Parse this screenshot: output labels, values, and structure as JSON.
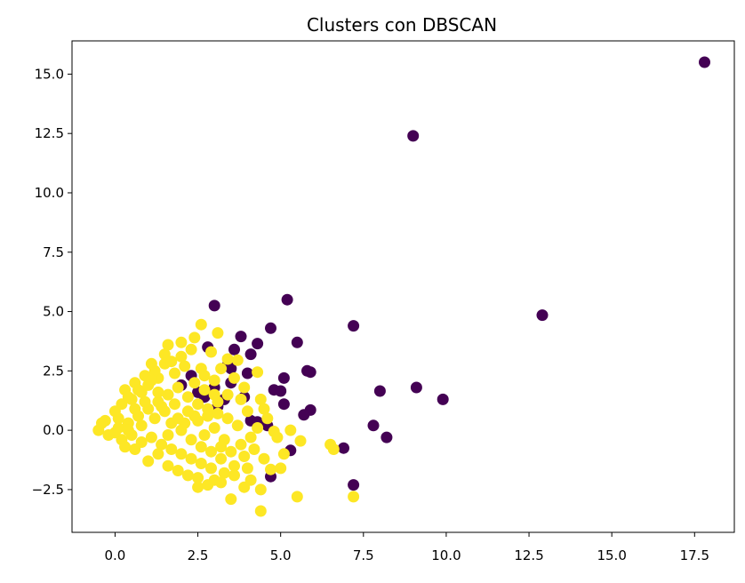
{
  "chart_data": {
    "type": "scatter",
    "title": "Clusters con DBSCAN",
    "xlabel": "",
    "ylabel": "",
    "xlim": [
      -1.3,
      18.7
    ],
    "ylim": [
      -4.3,
      16.4
    ],
    "grid": false,
    "legend": "none",
    "xticks": [
      0.0,
      2.5,
      5.0,
      7.5,
      10.0,
      12.5,
      15.0,
      17.5
    ],
    "xtick_labels": [
      "0.0",
      "2.5",
      "5.0",
      "7.5",
      "10.0",
      "12.5",
      "15.0",
      "17.5"
    ],
    "yticks": [
      -2.5,
      0.0,
      2.5,
      5.0,
      7.5,
      10.0,
      12.5,
      15.0
    ],
    "ytick_labels": [
      "−2.5",
      "0.0",
      "2.5",
      "5.0",
      "7.5",
      "10.0",
      "12.5",
      "15.0"
    ],
    "colors": {
      "noise": "#440154",
      "cluster": "#fde725"
    },
    "series": [
      {
        "color": "noise",
        "points": [
          [
            17.8,
            15.5
          ],
          [
            9.0,
            12.4
          ],
          [
            12.9,
            4.85
          ],
          [
            5.2,
            5.5
          ],
          [
            3.0,
            5.25
          ],
          [
            7.2,
            4.4
          ],
          [
            4.7,
            4.3
          ],
          [
            3.8,
            3.95
          ],
          [
            4.3,
            3.65
          ],
          [
            5.5,
            3.7
          ],
          [
            2.8,
            3.5
          ],
          [
            3.6,
            3.4
          ],
          [
            4.1,
            3.2
          ],
          [
            5.8,
            2.5
          ],
          [
            5.9,
            2.45
          ],
          [
            3.5,
            2.6
          ],
          [
            3.4,
            2.75
          ],
          [
            4.0,
            2.4
          ],
          [
            2.3,
            2.3
          ],
          [
            5.1,
            2.2
          ],
          [
            4.8,
            1.7
          ],
          [
            5.0,
            1.65
          ],
          [
            9.1,
            1.8
          ],
          [
            8.0,
            1.65
          ],
          [
            9.9,
            1.3
          ],
          [
            5.1,
            1.1
          ],
          [
            3.3,
            1.3
          ],
          [
            3.9,
            1.4
          ],
          [
            3.1,
            1.0
          ],
          [
            5.9,
            0.85
          ],
          [
            5.7,
            0.65
          ],
          [
            4.1,
            0.4
          ],
          [
            4.3,
            0.35
          ],
          [
            4.6,
            0.2
          ],
          [
            7.8,
            0.2
          ],
          [
            8.2,
            -0.3
          ],
          [
            6.9,
            -0.75
          ],
          [
            5.3,
            -0.85
          ],
          [
            4.7,
            -1.95
          ],
          [
            7.2,
            -2.3
          ],
          [
            2.7,
            1.4
          ],
          [
            3.0,
            1.8
          ],
          [
            2.5,
            1.6
          ],
          [
            3.5,
            2.0
          ],
          [
            2.0,
            1.9
          ]
        ]
      },
      {
        "color": "cluster",
        "points": [
          [
            2.6,
            4.45
          ],
          [
            3.1,
            4.1
          ],
          [
            2.4,
            3.9
          ],
          [
            2.0,
            3.7
          ],
          [
            1.6,
            3.6
          ],
          [
            2.9,
            3.3
          ],
          [
            1.5,
            3.2
          ],
          [
            3.4,
            3.0
          ],
          [
            3.7,
            2.95
          ],
          [
            1.1,
            2.8
          ],
          [
            4.3,
            2.45
          ],
          [
            3.9,
            1.8
          ],
          [
            4.4,
            1.3
          ],
          [
            4.5,
            0.9
          ],
          [
            4.8,
            -0.05
          ],
          [
            5.6,
            -0.45
          ],
          [
            6.5,
            -0.6
          ],
          [
            6.6,
            -0.8
          ],
          [
            5.1,
            -1.0
          ],
          [
            4.7,
            -1.65
          ],
          [
            4.1,
            -2.1
          ],
          [
            4.4,
            -2.5
          ],
          [
            3.0,
            -2.1
          ],
          [
            2.5,
            -2.4
          ],
          [
            3.5,
            -2.9
          ],
          [
            4.4,
            -3.4
          ],
          [
            5.5,
            -2.8
          ],
          [
            7.2,
            -2.8
          ],
          [
            -0.5,
            0.0
          ],
          [
            -0.3,
            0.4
          ],
          [
            0.0,
            0.8
          ],
          [
            0.2,
            1.1
          ],
          [
            0.5,
            1.3
          ],
          [
            0.8,
            1.6
          ],
          [
            1.0,
            1.9
          ],
          [
            1.3,
            2.2
          ],
          [
            0.6,
            2.0
          ],
          [
            0.3,
            1.7
          ],
          [
            1.8,
            2.4
          ],
          [
            2.1,
            2.7
          ],
          [
            2.4,
            2.0
          ],
          [
            2.7,
            2.3
          ],
          [
            3.0,
            2.1
          ],
          [
            0.1,
            0.1
          ],
          [
            0.4,
            0.3
          ],
          [
            0.7,
            0.6
          ],
          [
            1.0,
            0.9
          ],
          [
            1.3,
            1.2
          ],
          [
            1.6,
            1.5
          ],
          [
            1.9,
            1.8
          ],
          [
            2.2,
            1.4
          ],
          [
            2.5,
            1.1
          ],
          [
            2.8,
            0.9
          ],
          [
            3.1,
            0.7
          ],
          [
            3.4,
            0.5
          ],
          [
            0.2,
            -0.4
          ],
          [
            0.5,
            -0.2
          ],
          [
            0.8,
            -0.5
          ],
          [
            1.1,
            -0.3
          ],
          [
            1.4,
            -0.6
          ],
          [
            1.7,
            -0.8
          ],
          [
            2.0,
            -1.0
          ],
          [
            2.3,
            -1.2
          ],
          [
            2.6,
            -1.4
          ],
          [
            2.9,
            -1.6
          ],
          [
            3.2,
            -1.2
          ],
          [
            3.5,
            -0.9
          ],
          [
            3.8,
            -0.6
          ],
          [
            4.1,
            -0.3
          ],
          [
            3.7,
            0.2
          ],
          [
            0.6,
            0.9
          ],
          [
            0.9,
            1.2
          ],
          [
            1.2,
            0.5
          ],
          [
            1.5,
            0.8
          ],
          [
            1.8,
            1.1
          ],
          [
            2.1,
            0.3
          ],
          [
            2.4,
            0.6
          ],
          [
            2.7,
            -0.2
          ],
          [
            3.0,
            0.1
          ],
          [
            3.3,
            -0.4
          ],
          [
            1.0,
            -1.3
          ],
          [
            1.3,
            -1.0
          ],
          [
            1.6,
            -1.5
          ],
          [
            1.9,
            -1.7
          ],
          [
            2.2,
            -1.9
          ],
          [
            2.5,
            -2.0
          ],
          [
            3.3,
            -1.8
          ],
          [
            3.6,
            -1.5
          ],
          [
            3.9,
            -1.1
          ],
          [
            4.2,
            -0.8
          ],
          [
            0.0,
            -0.1
          ],
          [
            0.3,
            -0.7
          ],
          [
            0.6,
            -0.8
          ],
          [
            1.2,
            2.5
          ],
          [
            1.5,
            2.8
          ],
          [
            0.9,
            2.3
          ],
          [
            2.0,
            3.1
          ],
          [
            2.3,
            3.4
          ],
          [
            1.7,
            2.9
          ],
          [
            2.6,
            2.6
          ],
          [
            3.2,
            2.6
          ],
          [
            3.6,
            2.2
          ],
          [
            3.8,
            1.3
          ],
          [
            4.0,
            0.8
          ],
          [
            4.3,
            0.1
          ],
          [
            0.4,
            1.4
          ],
          [
            0.7,
            1.7
          ],
          [
            1.1,
            2.1
          ],
          [
            1.4,
            1.0
          ],
          [
            1.7,
            0.3
          ],
          [
            2.0,
            0.0
          ],
          [
            2.3,
            -0.4
          ],
          [
            2.6,
            -0.7
          ],
          [
            2.9,
            -0.9
          ],
          [
            3.2,
            -0.7
          ],
          [
            -0.4,
            0.3
          ],
          [
            -0.2,
            -0.2
          ],
          [
            0.1,
            0.5
          ],
          [
            0.4,
            0.0
          ],
          [
            0.8,
            0.2
          ],
          [
            1.6,
            -0.2
          ],
          [
            1.9,
            0.5
          ],
          [
            2.2,
            0.8
          ],
          [
            2.5,
            0.4
          ],
          [
            2.8,
            0.6
          ],
          [
            3.1,
            1.2
          ],
          [
            3.4,
            1.5
          ],
          [
            3.0,
            1.5
          ],
          [
            2.7,
            1.7
          ],
          [
            1.3,
            1.6
          ],
          [
            4.5,
            -1.2
          ],
          [
            4.9,
            -0.3
          ],
          [
            5.3,
            0.0
          ],
          [
            4.6,
            0.5
          ],
          [
            5.0,
            -1.6
          ],
          [
            2.8,
            -2.3
          ],
          [
            3.2,
            -2.2
          ],
          [
            3.9,
            -2.4
          ],
          [
            3.6,
            -1.9
          ],
          [
            4.0,
            -1.6
          ]
        ]
      }
    ]
  }
}
